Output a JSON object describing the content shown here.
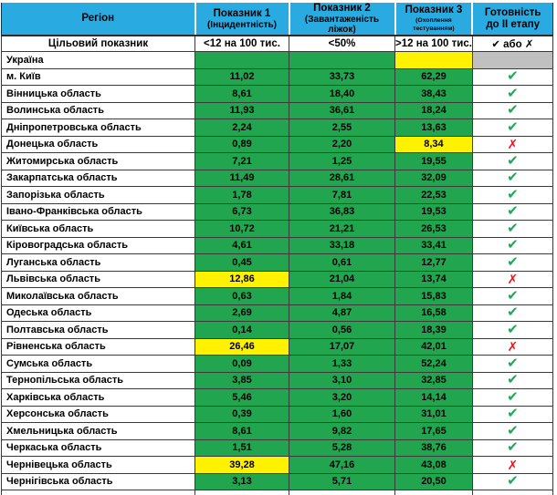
{
  "colors": {
    "header_blue": "#29ABE2",
    "green": "#22A54F",
    "yellow": "#FFF200",
    "gray": "#C0C0C0",
    "check_green": "#1FA855",
    "cross_red": "#E01B24"
  },
  "icons": {
    "check": "✔",
    "cross": "✗"
  },
  "chart_data": {
    "type": "table",
    "title": "",
    "columns": [
      {
        "title": "Регіон",
        "subtitle": ""
      },
      {
        "title": "Показник 1",
        "subtitle": "(Інцидентність)"
      },
      {
        "title": "Показник 2",
        "subtitle": "(Завантаженість ліжок)"
      },
      {
        "title": "Показник 3",
        "subtitle": "(Охоплення тестуванням)"
      },
      {
        "title": "Готовність",
        "subtitle": "до ІІ етапу"
      }
    ],
    "target_row": {
      "label": "Цільовий показник",
      "p1": "<12 на 100 тис.",
      "p2": "<50%",
      "p3": ">12 на 100 тис.",
      "ready": "✔ або ✗"
    },
    "rows": [
      {
        "region": "Україна",
        "cells": [
          {
            "v": "",
            "bg": "green"
          },
          {
            "v": "",
            "bg": "green"
          },
          {
            "v": "",
            "bg": "yellow"
          }
        ],
        "ready": "none"
      },
      {
        "region": "м. Київ",
        "cells": [
          {
            "v": "11,02",
            "bg": "green"
          },
          {
            "v": "33,73",
            "bg": "green"
          },
          {
            "v": "62,29",
            "bg": "green"
          }
        ],
        "ready": "check"
      },
      {
        "region": "Вінницька область",
        "cells": [
          {
            "v": "8,61",
            "bg": "green"
          },
          {
            "v": "18,40",
            "bg": "green"
          },
          {
            "v": "38,43",
            "bg": "green"
          }
        ],
        "ready": "check"
      },
      {
        "region": "Волинська область",
        "cells": [
          {
            "v": "11,93",
            "bg": "green"
          },
          {
            "v": "36,61",
            "bg": "green"
          },
          {
            "v": "18,24",
            "bg": "green"
          }
        ],
        "ready": "check"
      },
      {
        "region": "Дніпропетровська область",
        "cells": [
          {
            "v": "2,24",
            "bg": "green"
          },
          {
            "v": "2,55",
            "bg": "green"
          },
          {
            "v": "13,63",
            "bg": "green"
          }
        ],
        "ready": "check"
      },
      {
        "region": "Донецька область",
        "cells": [
          {
            "v": "0,89",
            "bg": "green"
          },
          {
            "v": "2,20",
            "bg": "green"
          },
          {
            "v": "8,34",
            "bg": "yellow"
          }
        ],
        "ready": "cross"
      },
      {
        "region": "Житомирська область",
        "cells": [
          {
            "v": "7,21",
            "bg": "green"
          },
          {
            "v": "1,25",
            "bg": "green"
          },
          {
            "v": "19,55",
            "bg": "green"
          }
        ],
        "ready": "check"
      },
      {
        "region": "Закарпатська область",
        "cells": [
          {
            "v": "11,49",
            "bg": "green"
          },
          {
            "v": "28,61",
            "bg": "green"
          },
          {
            "v": "32,09",
            "bg": "green"
          }
        ],
        "ready": "check"
      },
      {
        "region": "Запорізька область",
        "cells": [
          {
            "v": "1,78",
            "bg": "green"
          },
          {
            "v": "7,81",
            "bg": "green"
          },
          {
            "v": "22,53",
            "bg": "green"
          }
        ],
        "ready": "check"
      },
      {
        "region": "Івано-Франківська область",
        "cells": [
          {
            "v": "6,73",
            "bg": "green"
          },
          {
            "v": "36,83",
            "bg": "green"
          },
          {
            "v": "19,53",
            "bg": "green"
          }
        ],
        "ready": "check"
      },
      {
        "region": "Київська область",
        "cells": [
          {
            "v": "10,72",
            "bg": "green"
          },
          {
            "v": "21,21",
            "bg": "green"
          },
          {
            "v": "26,53",
            "bg": "green"
          }
        ],
        "ready": "check"
      },
      {
        "region": "Кіровоградська область",
        "cells": [
          {
            "v": "4,61",
            "bg": "green"
          },
          {
            "v": "33,18",
            "bg": "green"
          },
          {
            "v": "33,41",
            "bg": "green"
          }
        ],
        "ready": "check"
      },
      {
        "region": "Луганська область",
        "cells": [
          {
            "v": "0,45",
            "bg": "green"
          },
          {
            "v": "0,61",
            "bg": "green"
          },
          {
            "v": "12,77",
            "bg": "green"
          }
        ],
        "ready": "check"
      },
      {
        "region": "Львівська область",
        "cells": [
          {
            "v": "12,86",
            "bg": "yellow"
          },
          {
            "v": "21,04",
            "bg": "green"
          },
          {
            "v": "13,74",
            "bg": "green"
          }
        ],
        "ready": "cross"
      },
      {
        "region": "Миколаївська область",
        "cells": [
          {
            "v": "0,63",
            "bg": "green"
          },
          {
            "v": "1,84",
            "bg": "green"
          },
          {
            "v": "15,83",
            "bg": "green"
          }
        ],
        "ready": "check"
      },
      {
        "region": "Одеська область",
        "cells": [
          {
            "v": "2,69",
            "bg": "green"
          },
          {
            "v": "4,87",
            "bg": "green"
          },
          {
            "v": "16,58",
            "bg": "green"
          }
        ],
        "ready": "check"
      },
      {
        "region": "Полтавська область",
        "cells": [
          {
            "v": "0,14",
            "bg": "green"
          },
          {
            "v": "0,56",
            "bg": "green"
          },
          {
            "v": "18,39",
            "bg": "green"
          }
        ],
        "ready": "check"
      },
      {
        "region": "Рівненська область",
        "cells": [
          {
            "v": "26,46",
            "bg": "yellow"
          },
          {
            "v": "17,07",
            "bg": "green"
          },
          {
            "v": "42,01",
            "bg": "green"
          }
        ],
        "ready": "cross"
      },
      {
        "region": "Сумська область",
        "cells": [
          {
            "v": "0,09",
            "bg": "green"
          },
          {
            "v": "1,33",
            "bg": "green"
          },
          {
            "v": "52,24",
            "bg": "green"
          }
        ],
        "ready": "check"
      },
      {
        "region": "Тернопільська область",
        "cells": [
          {
            "v": "3,85",
            "bg": "green"
          },
          {
            "v": "3,10",
            "bg": "green"
          },
          {
            "v": "32,85",
            "bg": "green"
          }
        ],
        "ready": "check"
      },
      {
        "region": "Харківська область",
        "cells": [
          {
            "v": "5,46",
            "bg": "green"
          },
          {
            "v": "3,20",
            "bg": "green"
          },
          {
            "v": "14,14",
            "bg": "green"
          }
        ],
        "ready": "check"
      },
      {
        "region": "Херсонська область",
        "cells": [
          {
            "v": "0,39",
            "bg": "green"
          },
          {
            "v": "1,60",
            "bg": "green"
          },
          {
            "v": "31,01",
            "bg": "green"
          }
        ],
        "ready": "check"
      },
      {
        "region": "Хмельницька область",
        "cells": [
          {
            "v": "8,61",
            "bg": "green"
          },
          {
            "v": "9,82",
            "bg": "green"
          },
          {
            "v": "17,65",
            "bg": "green"
          }
        ],
        "ready": "check"
      },
      {
        "region": "Черкаська область",
        "cells": [
          {
            "v": "1,51",
            "bg": "green"
          },
          {
            "v": "5,28",
            "bg": "green"
          },
          {
            "v": "38,76",
            "bg": "green"
          }
        ],
        "ready": "check"
      },
      {
        "region": "Чернівецька область",
        "cells": [
          {
            "v": "39,28",
            "bg": "yellow"
          },
          {
            "v": "47,16",
            "bg": "green"
          },
          {
            "v": "43,08",
            "bg": "green"
          }
        ],
        "ready": "cross"
      },
      {
        "region": "Чернігівська область",
        "cells": [
          {
            "v": "3,13",
            "bg": "green"
          },
          {
            "v": "5,71",
            "bg": "green"
          },
          {
            "v": "20,50",
            "bg": "green"
          }
        ],
        "ready": "check"
      }
    ]
  }
}
